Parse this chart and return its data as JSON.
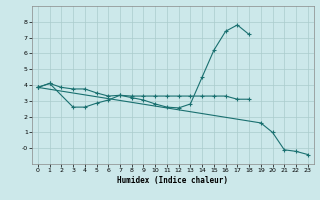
{
  "xlabel": "Humidex (Indice chaleur)",
  "xlim": [
    -0.5,
    23.5
  ],
  "ylim": [
    -1.0,
    9.0
  ],
  "yticks": [
    0,
    1,
    2,
    3,
    4,
    5,
    6,
    7,
    8
  ],
  "ytick_labels": [
    "-0",
    "1",
    "2",
    "3",
    "4",
    "5",
    "6",
    "7",
    "8"
  ],
  "xticks": [
    0,
    1,
    2,
    3,
    4,
    5,
    6,
    7,
    8,
    9,
    10,
    11,
    12,
    13,
    14,
    15,
    16,
    17,
    18,
    19,
    20,
    21,
    22,
    23
  ],
  "bg_color": "#cce8ea",
  "grid_color": "#aacccc",
  "line_color": "#1a7070",
  "line1_x": [
    0,
    1,
    2,
    3,
    4,
    5,
    6,
    7,
    8,
    9,
    10,
    11,
    12,
    13,
    14,
    15,
    16,
    17,
    18
  ],
  "line1_y": [
    3.85,
    4.1,
    3.85,
    3.75,
    3.75,
    3.5,
    3.3,
    3.35,
    3.3,
    3.3,
    3.3,
    3.3,
    3.3,
    3.3,
    3.3,
    3.3,
    3.3,
    3.1,
    3.1
  ],
  "line2_x": [
    0,
    1,
    3,
    4,
    5,
    6,
    7,
    8,
    9,
    10,
    11,
    12,
    13,
    14,
    15,
    16,
    17,
    18
  ],
  "line2_y": [
    3.85,
    4.1,
    2.6,
    2.6,
    2.85,
    3.05,
    3.35,
    3.2,
    3.05,
    2.8,
    2.6,
    2.55,
    2.8,
    4.5,
    6.2,
    7.4,
    7.8,
    7.2
  ],
  "line3_x": [
    0,
    19,
    20,
    21,
    22,
    23
  ],
  "line3_y": [
    3.85,
    1.6,
    1.0,
    -0.1,
    -0.2,
    -0.4
  ]
}
